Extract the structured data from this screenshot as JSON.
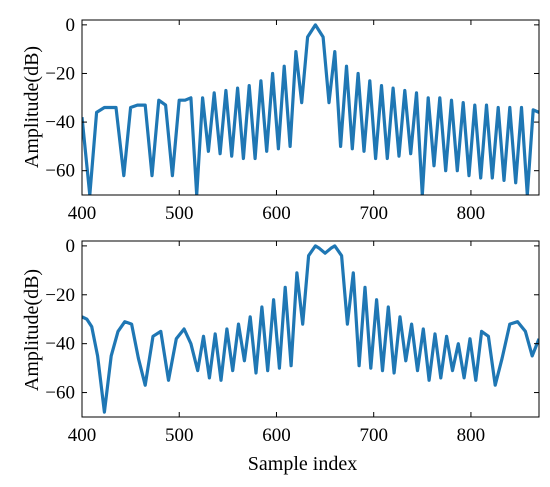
{
  "chart_data": [
    {
      "type": "line",
      "xlabel": "",
      "ylabel": "Amplitude(dB)",
      "xlim": [
        400,
        870
      ],
      "ylim": [
        -70,
        2
      ],
      "xticks": [
        400,
        500,
        600,
        700,
        800
      ],
      "yticks": [
        0,
        -20,
        -40,
        -60
      ],
      "grid": false,
      "color": "#1f77b4",
      "series": [
        {
          "x": [
            400,
            408,
            415,
            423,
            435,
            443,
            450,
            457,
            465,
            472,
            479,
            486,
            493,
            500,
            506,
            512,
            518,
            524,
            530,
            536,
            542,
            548,
            554,
            560,
            566,
            572,
            578,
            584,
            590,
            596,
            602,
            608,
            614,
            620,
            626,
            632,
            640,
            648,
            654,
            660,
            666,
            672,
            678,
            684,
            690,
            696,
            702,
            708,
            714,
            720,
            726,
            732,
            738,
            744,
            750,
            756,
            762,
            768,
            774,
            780,
            786,
            792,
            798,
            804,
            810,
            816,
            822,
            828,
            834,
            840,
            846,
            852,
            858,
            864,
            870
          ],
          "y": [
            -38,
            -70,
            -36,
            -34,
            -34,
            -62,
            -34,
            -33,
            -33,
            -62,
            -31,
            -33,
            -62,
            -31,
            -31,
            -30,
            -70,
            -30,
            -52,
            -28,
            -53,
            -27,
            -54,
            -26,
            -55,
            -25,
            -55,
            -23,
            -52,
            -20,
            -51,
            -17,
            -50,
            -11,
            -32,
            -5,
            0,
            -5,
            -32,
            -11,
            -50,
            -17,
            -51,
            -20,
            -52,
            -23,
            -55,
            -25,
            -55,
            -26,
            -54,
            -27,
            -53,
            -28,
            -70,
            -30,
            -58,
            -30,
            -60,
            -31,
            -60,
            -32,
            -62,
            -33,
            -63,
            -33,
            -63,
            -34,
            -64,
            -34,
            -65,
            -34,
            -70,
            -35,
            -36
          ]
        }
      ]
    },
    {
      "type": "line",
      "xlabel": "Sample index",
      "ylabel": "Amplitude(dB)",
      "xlim": [
        400,
        870
      ],
      "ylim": [
        -70,
        2
      ],
      "xticks": [
        400,
        500,
        600,
        700,
        800
      ],
      "yticks": [
        0,
        -20,
        -40,
        -60
      ],
      "grid": false,
      "color": "#1f77b4",
      "series": [
        {
          "x": [
            400,
            405,
            410,
            416,
            423,
            430,
            437,
            444,
            451,
            458,
            465,
            473,
            481,
            489,
            497,
            505,
            512,
            519,
            525,
            531,
            537,
            543,
            549,
            555,
            561,
            567,
            573,
            579,
            585,
            591,
            597,
            603,
            609,
            615,
            621,
            627,
            633,
            640,
            644,
            650,
            656,
            660,
            667,
            673,
            679,
            685,
            691,
            697,
            703,
            709,
            715,
            721,
            727,
            733,
            739,
            745,
            751,
            757,
            763,
            769,
            775,
            781,
            787,
            793,
            799,
            805,
            811,
            818,
            825,
            832,
            840,
            848,
            856,
            863,
            870
          ],
          "y": [
            -29,
            -30,
            -33,
            -45,
            -68,
            -45,
            -35,
            -31,
            -32,
            -46,
            -57,
            -37,
            -35,
            -55,
            -38,
            -34,
            -40,
            -51,
            -37,
            -54,
            -36,
            -55,
            -34,
            -51,
            -32,
            -47,
            -29,
            -52,
            -25,
            -51,
            -22,
            -50,
            -17,
            -49,
            -11,
            -32,
            -4,
            0,
            -1,
            -3,
            -1,
            0,
            -4,
            -32,
            -11,
            -49,
            -17,
            -50,
            -22,
            -51,
            -25,
            -52,
            -29,
            -47,
            -32,
            -51,
            -34,
            -55,
            -36,
            -54,
            -37,
            -51,
            -40,
            -54,
            -38,
            -55,
            -35,
            -37,
            -57,
            -46,
            -32,
            -31,
            -35,
            -45,
            -38
          ]
        }
      ]
    }
  ]
}
